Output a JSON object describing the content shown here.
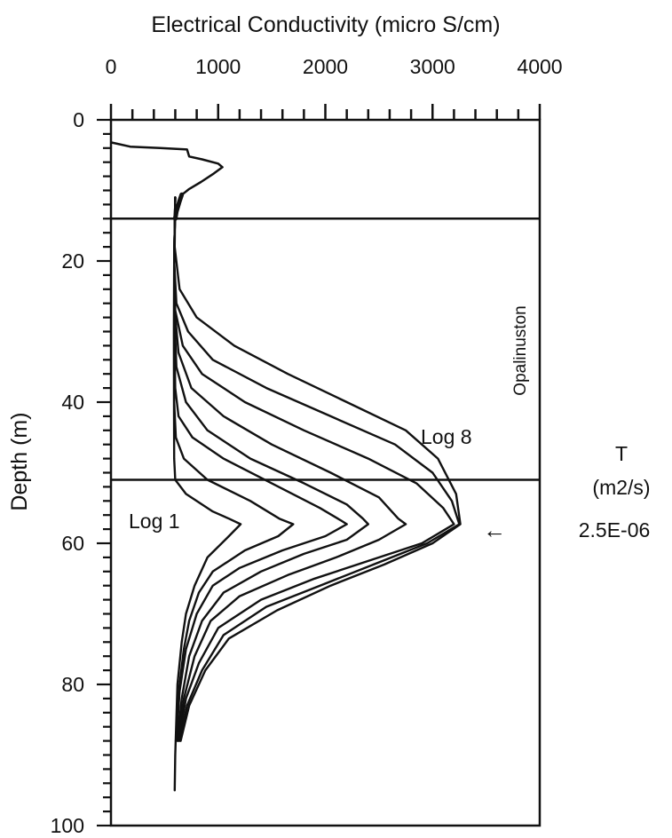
{
  "chart_data": {
    "type": "line",
    "xlabel": "Electrical Conductivity (micro S/cm)",
    "ylabel": "Depth (m)",
    "xlim": [
      0,
      4000
    ],
    "ylim": [
      0,
      100
    ],
    "y_inverted": true,
    "x_axis_position": "top",
    "x_ticks": [
      "0",
      "1000",
      "2000",
      "3000",
      "4000"
    ],
    "y_ticks": [
      "0",
      "20",
      "40",
      "60",
      "80",
      "100"
    ],
    "horizontal_lines": [
      14,
      51
    ],
    "series": [
      {
        "name": "Log 1",
        "points": [
          [
            600,
            11
          ],
          [
            590,
            20
          ],
          [
            588,
            30
          ],
          [
            588,
            40
          ],
          [
            590,
            48
          ],
          [
            600,
            51
          ],
          [
            700,
            53
          ],
          [
            950,
            55.5
          ],
          [
            1100,
            56.5
          ],
          [
            1210,
            57.3
          ],
          [
            1100,
            59
          ],
          [
            900,
            62
          ],
          [
            780,
            66
          ],
          [
            700,
            70
          ],
          [
            660,
            74
          ],
          [
            620,
            80
          ],
          [
            600,
            90
          ],
          [
            595,
            95
          ]
        ]
      },
      {
        "name": "",
        "points": [
          [
            600,
            11
          ],
          [
            590,
            20
          ],
          [
            588,
            30
          ],
          [
            590,
            40
          ],
          [
            605,
            45
          ],
          [
            680,
            48
          ],
          [
            900,
            51
          ],
          [
            1300,
            54
          ],
          [
            1570,
            56.5
          ],
          [
            1700,
            57.3
          ],
          [
            1560,
            59
          ],
          [
            1250,
            61
          ],
          [
            950,
            64
          ],
          [
            820,
            67
          ],
          [
            730,
            71
          ],
          [
            680,
            75
          ],
          [
            640,
            80
          ],
          [
            605,
            88
          ]
        ]
      },
      {
        "name": "",
        "points": [
          [
            600,
            11
          ],
          [
            590,
            20
          ],
          [
            590,
            28
          ],
          [
            600,
            38
          ],
          [
            630,
            42
          ],
          [
            760,
            45
          ],
          [
            1050,
            48
          ],
          [
            1500,
            51.5
          ],
          [
            1950,
            55
          ],
          [
            2150,
            56.8
          ],
          [
            2200,
            57.3
          ],
          [
            2000,
            59
          ],
          [
            1600,
            61
          ],
          [
            1200,
            63.5
          ],
          [
            950,
            66
          ],
          [
            800,
            70
          ],
          [
            700,
            75
          ],
          [
            640,
            81
          ],
          [
            610,
            88
          ]
        ]
      },
      {
        "name": "",
        "points": [
          [
            600,
            11
          ],
          [
            590,
            20
          ],
          [
            593,
            28
          ],
          [
            610,
            35
          ],
          [
            700,
            40
          ],
          [
            900,
            44
          ],
          [
            1300,
            48
          ],
          [
            1800,
            51.5
          ],
          [
            2200,
            54.5
          ],
          [
            2350,
            56.5
          ],
          [
            2400,
            57.3
          ],
          [
            2200,
            59.5
          ],
          [
            1800,
            61.5
          ],
          [
            1400,
            64
          ],
          [
            1050,
            67
          ],
          [
            850,
            71
          ],
          [
            730,
            76
          ],
          [
            660,
            82
          ],
          [
            620,
            88
          ]
        ]
      },
      {
        "name": "",
        "points": [
          [
            600,
            11
          ],
          [
            590,
            20
          ],
          [
            595,
            27
          ],
          [
            630,
            33
          ],
          [
            750,
            38
          ],
          [
            1050,
            42
          ],
          [
            1500,
            46
          ],
          [
            2050,
            50
          ],
          [
            2500,
            53.5
          ],
          [
            2680,
            56.5
          ],
          [
            2750,
            57.3
          ],
          [
            2500,
            59.5
          ],
          [
            2100,
            62
          ],
          [
            1650,
            64.5
          ],
          [
            1200,
            67.5
          ],
          [
            930,
            71
          ],
          [
            780,
            76
          ],
          [
            680,
            82
          ],
          [
            625,
            88
          ]
        ]
      },
      {
        "name": "",
        "points": [
          [
            600,
            11
          ],
          [
            590,
            20
          ],
          [
            600,
            27
          ],
          [
            670,
            32
          ],
          [
            850,
            36
          ],
          [
            1250,
            40
          ],
          [
            1800,
            44
          ],
          [
            2400,
            48
          ],
          [
            2850,
            51.5
          ],
          [
            3100,
            55
          ],
          [
            3200,
            57.3
          ],
          [
            2900,
            60
          ],
          [
            2400,
            62.5
          ],
          [
            1900,
            65
          ],
          [
            1400,
            68
          ],
          [
            1000,
            72
          ],
          [
            820,
            77
          ],
          [
            700,
            82
          ],
          [
            630,
            88
          ]
        ]
      },
      {
        "name": "",
        "points": [
          [
            600,
            11
          ],
          [
            590,
            20
          ],
          [
            610,
            26
          ],
          [
            720,
            30
          ],
          [
            950,
            34
          ],
          [
            1450,
            38
          ],
          [
            2050,
            42
          ],
          [
            2650,
            46
          ],
          [
            3000,
            50
          ],
          [
            3180,
            54
          ],
          [
            3250,
            57.3
          ],
          [
            2950,
            60
          ],
          [
            2450,
            63
          ],
          [
            1950,
            66
          ],
          [
            1450,
            69
          ],
          [
            1050,
            73
          ],
          [
            850,
            78
          ],
          [
            710,
            83
          ],
          [
            640,
            88
          ]
        ]
      },
      {
        "name": "Log 8",
        "points": [
          [
            600,
            11
          ],
          [
            595,
            18
          ],
          [
            640,
            24
          ],
          [
            800,
            28
          ],
          [
            1150,
            32
          ],
          [
            1650,
            36
          ],
          [
            2200,
            40
          ],
          [
            2750,
            44
          ],
          [
            3050,
            48
          ],
          [
            3220,
            53
          ],
          [
            3260,
            57.3
          ],
          [
            3000,
            60
          ],
          [
            2550,
            63
          ],
          [
            2050,
            66
          ],
          [
            1550,
            69.5
          ],
          [
            1100,
            73.5
          ],
          [
            880,
            78
          ],
          [
            730,
            83
          ],
          [
            650,
            88
          ]
        ]
      }
    ],
    "top_trace": [
      [
        0,
        3.2
      ],
      [
        180,
        3.8
      ],
      [
        460,
        4
      ],
      [
        710,
        4.2
      ],
      [
        730,
        5.2
      ],
      [
        850,
        5.6
      ],
      [
        1000,
        6.2
      ],
      [
        1040,
        6.7
      ],
      [
        960,
        7.6
      ],
      [
        840,
        8.8
      ],
      [
        730,
        9.8
      ],
      [
        680,
        10.4
      ],
      [
        650,
        10.6
      ]
    ],
    "annotations": {
      "log1": "Log 1",
      "log8": "Log 8",
      "formation": "Opalinuston",
      "t_label": "T",
      "t_unit": "(m2/s)",
      "t_value": "2.5E-06",
      "arrow_depth": 57.3,
      "arrow_symbol": "←"
    }
  }
}
